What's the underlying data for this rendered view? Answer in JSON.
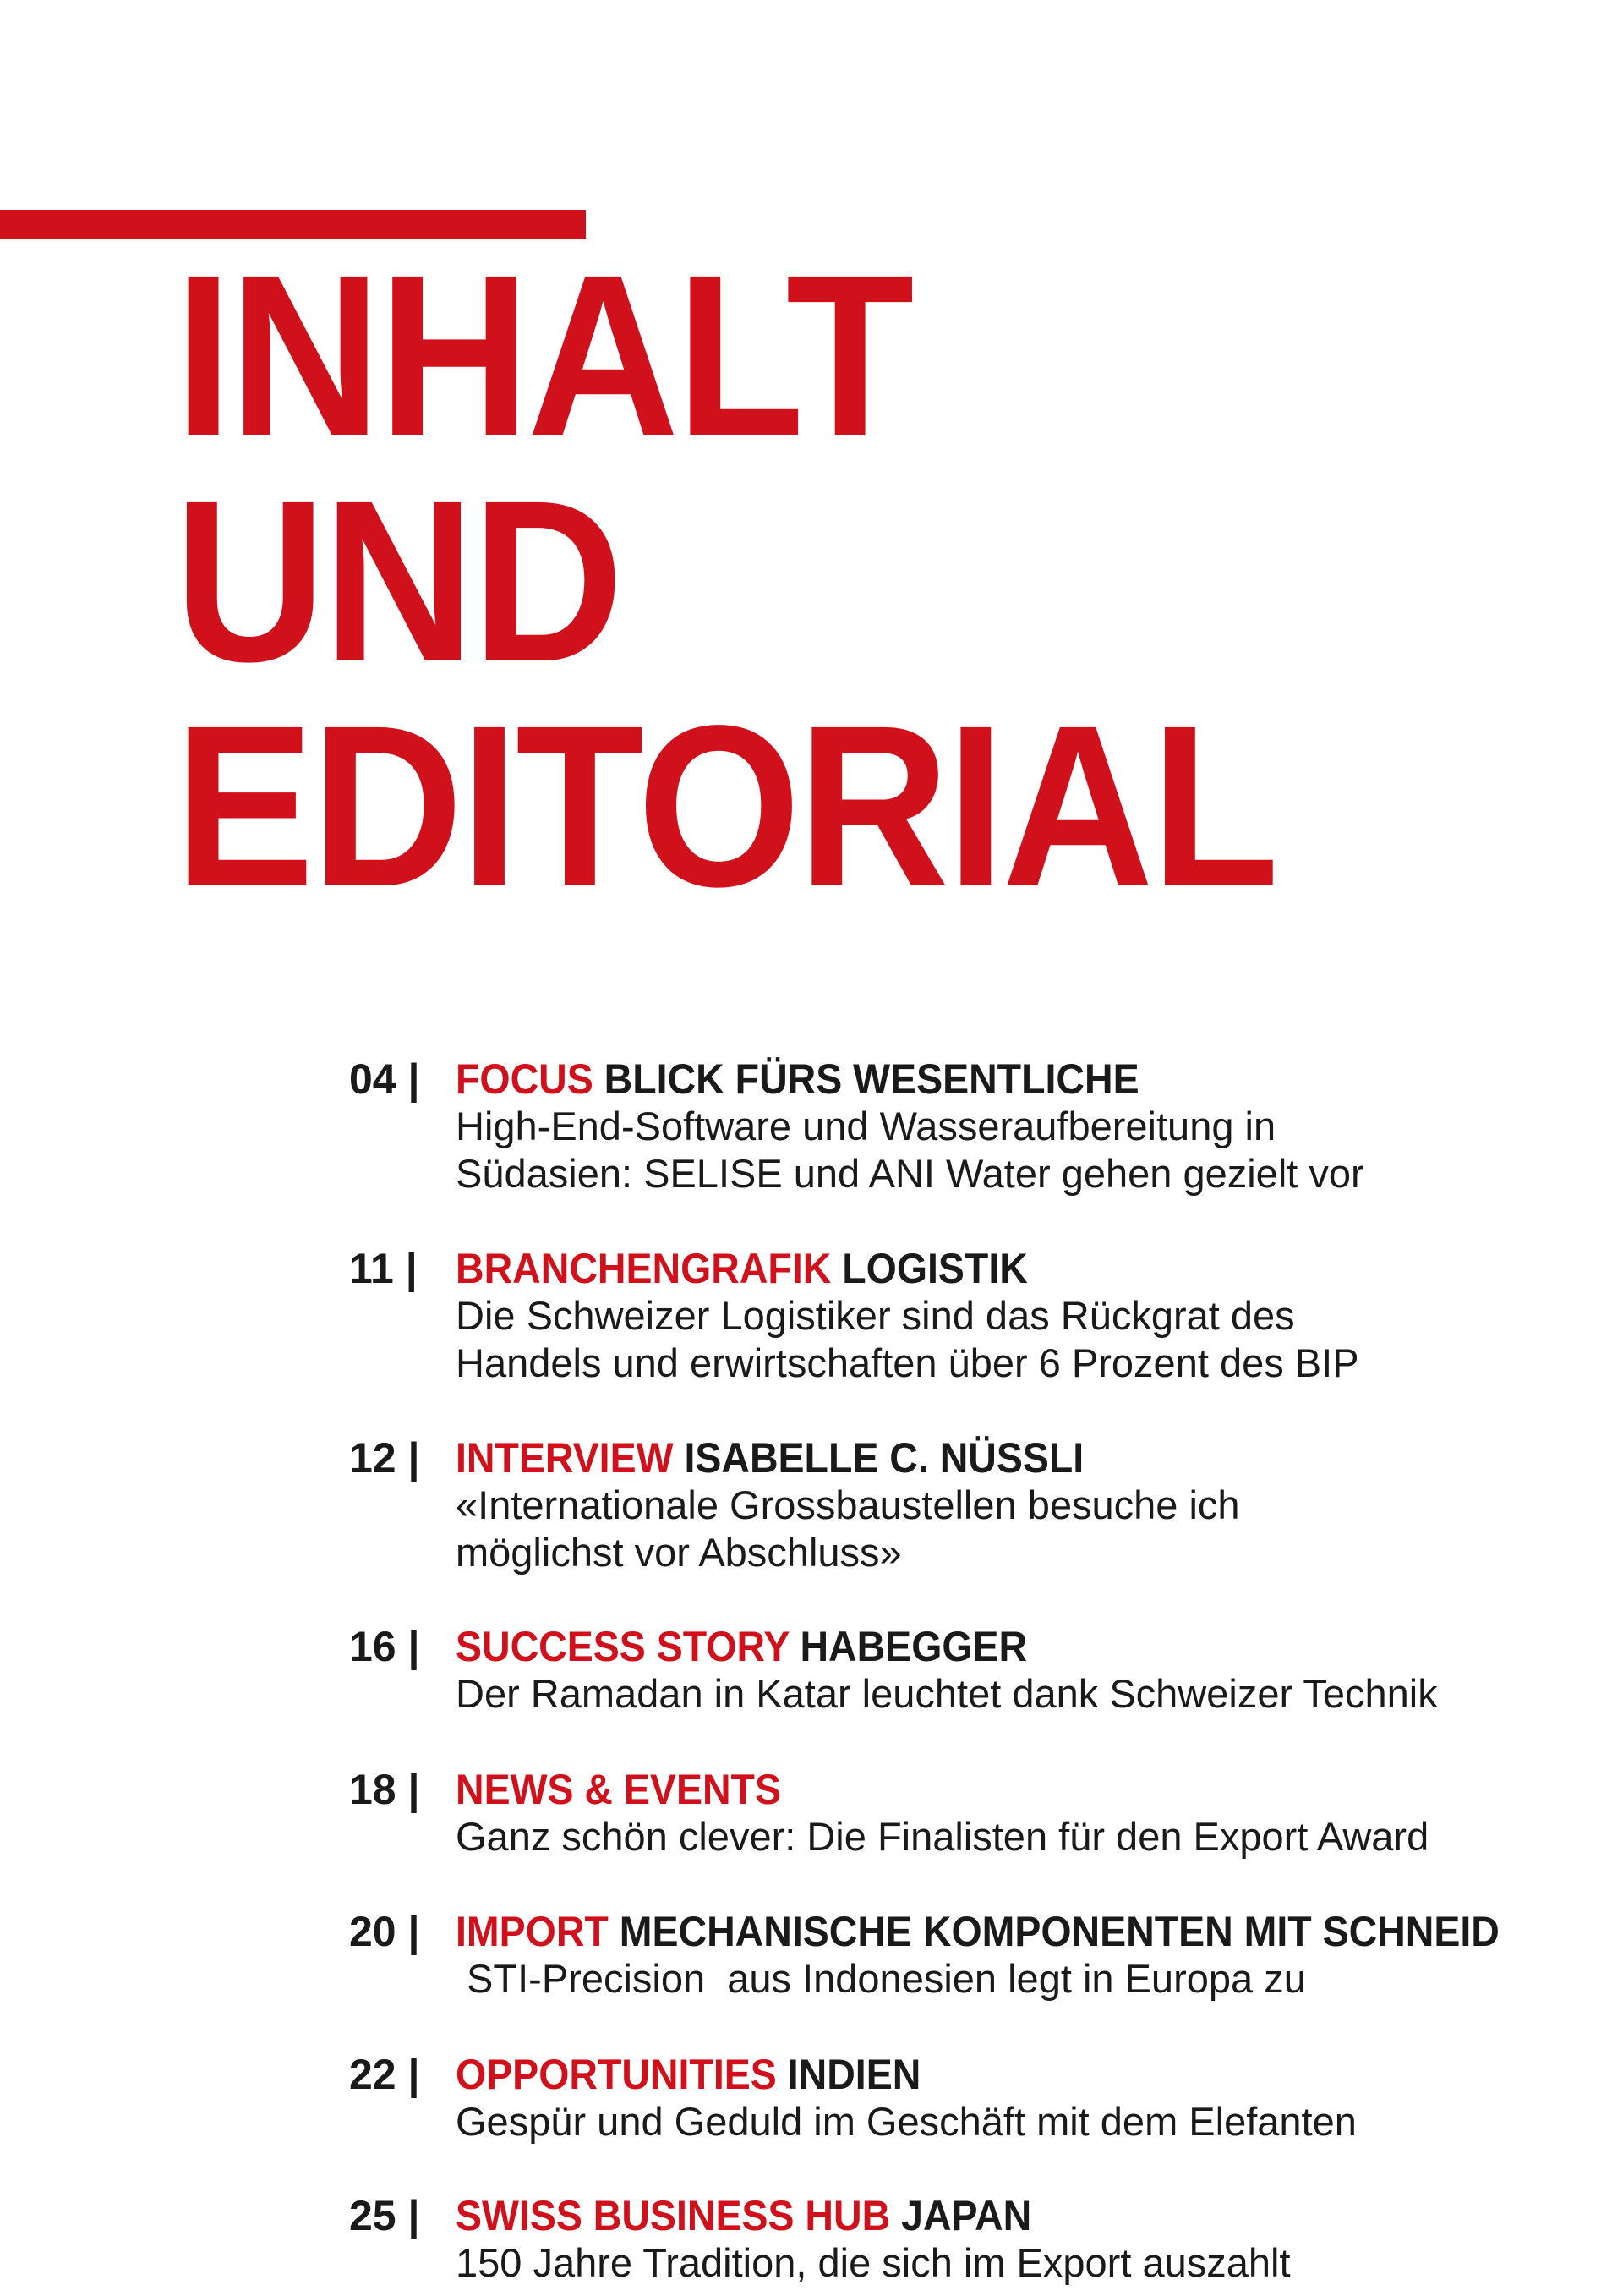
{
  "title": {
    "lines": [
      "INHALT",
      "UND",
      "EDITORIAL"
    ]
  },
  "accent_color": "#d0111b",
  "toc": [
    {
      "page": "04 |",
      "category": "FOCUS",
      "topic": "BLICK FÜRS WESENTLICHE",
      "lines": [
        "High-End-Software und Wasseraufbereitung in",
        "Südasien: SELISE und ANI Water gehen gezielt vor"
      ]
    },
    {
      "page": "11 |",
      "category": "BRANCHENGRAFIK",
      "topic": "LOGISTIK",
      "lines": [
        "Die Schweizer Logistiker sind das Rückgrat des",
        "Handels und erwirtschaften über 6 Prozent des BIP"
      ]
    },
    {
      "page": "12 |",
      "category": "INTERVIEW",
      "topic": "ISABELLE C. NÜSSLI",
      "lines": [
        "«Internationale Grossbaustellen besuche ich",
        "möglichst vor Abschluss»"
      ]
    },
    {
      "page": "16 |",
      "category": "SUCCESS STORY",
      "topic": "HABEGGER",
      "lines": [
        "Der Ramadan in Katar leuchtet dank Schweizer Technik"
      ]
    },
    {
      "page": "18 |",
      "category": "NEWS & EVENTS",
      "topic": "",
      "lines": [
        "Ganz schön clever: Die Finalisten für den Export Award"
      ]
    },
    {
      "page": "20 |",
      "category": "IMPORT",
      "topic": "MECHANISCHE KOMPONENTEN MIT SCHNEID",
      "lines": [
        " STI-Precision  aus Indonesien legt in Europa zu"
      ]
    },
    {
      "page": "22 |",
      "category": "OPPORTUNITIES",
      "topic": "INDIEN",
      "lines": [
        "Gespür und Geduld im Geschäft mit dem Elefanten"
      ]
    },
    {
      "page": "25 |",
      "category": "SWISS BUSINESS HUB",
      "topic": "JAPAN",
      "lines": [
        "150 Jahre Tradition, die sich im Export auszahlt"
      ]
    }
  ]
}
